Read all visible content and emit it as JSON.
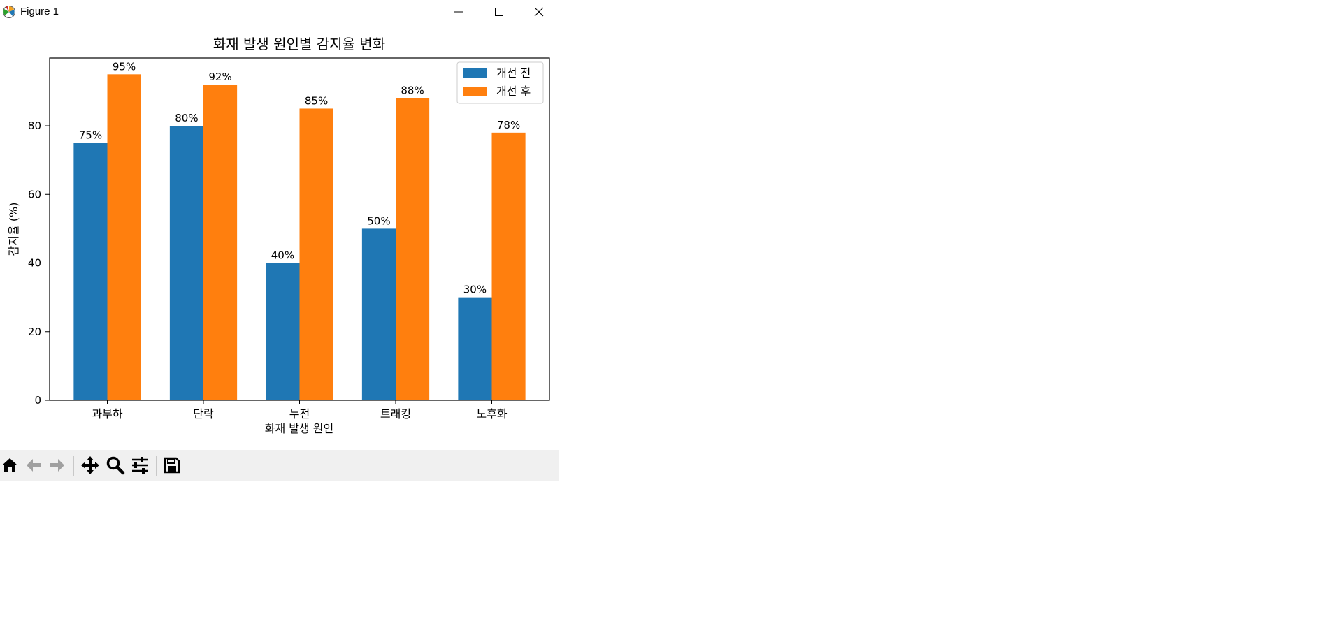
{
  "window": {
    "title": "Figure 1",
    "icons": {
      "app": "matplotlib-icon",
      "minimize": "minimize-icon",
      "maximize": "maximize-icon",
      "close": "close-icon"
    }
  },
  "toolbar": {
    "tools": [
      "home-icon",
      "back-arrow-icon",
      "forward-arrow-icon",
      "pan-icon",
      "zoom-icon",
      "configure-subplots-icon",
      "save-icon"
    ]
  },
  "chart_data": {
    "type": "bar",
    "title": "화재 발생 원인별 감지율 변화",
    "xlabel": "화재 발생 원인",
    "ylabel": "감지율 (%)",
    "categories": [
      "과부하",
      "단락",
      "누전",
      "트래킹",
      "노후화"
    ],
    "series": [
      {
        "name": "개선 전",
        "values": [
          75,
          80,
          40,
          50,
          30
        ],
        "labels": [
          "75%",
          "80%",
          "40%",
          "50%",
          "30%"
        ],
        "color": "#1f77b4"
      },
      {
        "name": "개선 후",
        "values": [
          95,
          92,
          85,
          88,
          78
        ],
        "labels": [
          "95%",
          "92%",
          "85%",
          "88%",
          "78%"
        ],
        "color": "#ff7f0e"
      }
    ],
    "ylim": [
      0,
      99.75
    ],
    "yticks": [
      "0",
      "20",
      "40",
      "60",
      "80"
    ],
    "grid": false,
    "legend_position": "top-right"
  }
}
